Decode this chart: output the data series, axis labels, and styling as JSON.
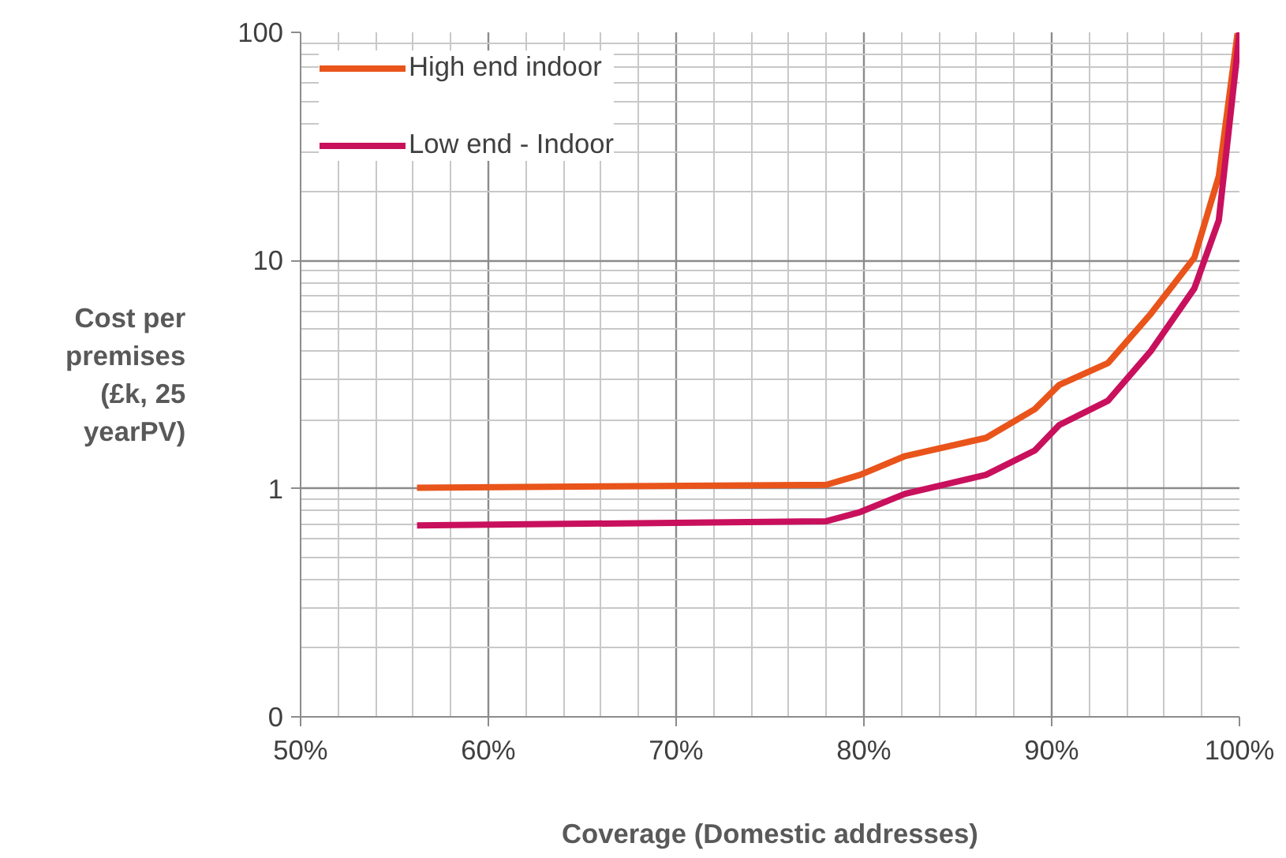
{
  "chart_data": {
    "type": "line",
    "xlabel": "Coverage (Domestic addresses)",
    "ylabel": "Cost per premises (£k, 25 yearPV)",
    "log": "y",
    "grid": true,
    "legend": "top left",
    "line_style": "solid",
    "marker": "none",
    "xlim": [
      50,
      100
    ],
    "xticks": [
      {
        "value": 50,
        "label": "50%"
      },
      {
        "value": 60,
        "label": "60%"
      },
      {
        "value": 70,
        "label": "70%"
      },
      {
        "value": 80,
        "label": "80%"
      },
      {
        "value": 90,
        "label": "90%"
      },
      {
        "value": 100,
        "label": "100%"
      }
    ],
    "ylim": [
      0.1,
      100
    ],
    "yticks": [
      {
        "value": 0.1,
        "label": "0"
      },
      1,
      10,
      100
    ],
    "series": [
      {
        "name": "High end indoor",
        "color": "#e9541b",
        "x": [
          56.2,
          78,
          79.8,
          82.2,
          86.5,
          89.1,
          90.4,
          93,
          95.3,
          97.6,
          98.9,
          99.9
        ],
        "values": [
          1.01,
          1.04,
          1.15,
          1.39,
          1.67,
          2.23,
          2.85,
          3.55,
          5.87,
          10.3,
          23.4,
          99
        ]
      },
      {
        "name": "Low end - Indoor",
        "color": "#c8105d",
        "x": [
          56.2,
          78,
          79.8,
          82.2,
          86.5,
          89.1,
          90.4,
          93,
          95.3,
          97.6,
          98.9,
          99.8,
          100
        ],
        "values": [
          0.69,
          0.72,
          0.79,
          0.95,
          1.15,
          1.47,
          1.9,
          2.43,
          4.03,
          7.55,
          15,
          70,
          100
        ]
      }
    ]
  }
}
